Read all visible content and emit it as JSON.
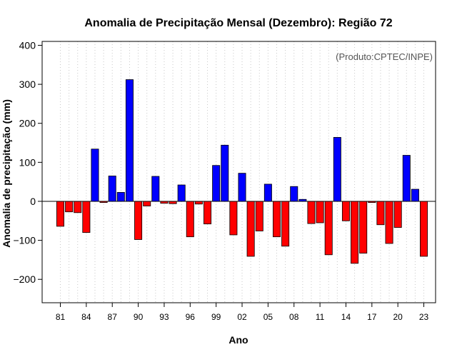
{
  "chart_data": {
    "type": "bar",
    "title": "Anomalia de Precipitação Mensal (Dezembro): Região 72",
    "xlabel": "Ano",
    "ylabel": "Anomalia de precipitação (mm)",
    "annotation": "(Produto:CPTEC/INPE)",
    "legend_position": "none",
    "grid": "vertical dotted lines per year",
    "ylim": [
      -260,
      410
    ],
    "yticks": [
      -200,
      -100,
      0,
      100,
      200,
      300,
      400
    ],
    "ytick_labels": [
      "−200",
      "−100",
      "0",
      "100",
      "200",
      "300",
      "400"
    ],
    "xtick_labels": [
      "81",
      "84",
      "87",
      "90",
      "93",
      "96",
      "99",
      "02",
      "05",
      "08",
      "11",
      "14",
      "17",
      "20",
      "23"
    ],
    "xtick_years": [
      1981,
      1984,
      1987,
      1990,
      1993,
      1996,
      1999,
      2002,
      2005,
      2008,
      2011,
      2014,
      2017,
      2020,
      2023
    ],
    "colors": {
      "positive": "#0000ff",
      "negative": "#ff0000",
      "edge": "#000000",
      "zero_line": "#000000"
    },
    "categories": [
      1981,
      1982,
      1983,
      1984,
      1985,
      1986,
      1987,
      1988,
      1989,
      1990,
      1991,
      1992,
      1993,
      1994,
      1995,
      1996,
      1997,
      1998,
      1999,
      2000,
      2001,
      2002,
      2003,
      2004,
      2005,
      2006,
      2007,
      2008,
      2009,
      2010,
      2011,
      2012,
      2013,
      2014,
      2015,
      2016,
      2017,
      2018,
      2019,
      2020,
      2021,
      2022,
      2023
    ],
    "values": [
      -64,
      -27,
      -29,
      -80,
      134,
      -3,
      65,
      23,
      312,
      -98,
      -12,
      64,
      -5,
      -6,
      42,
      -91,
      -7,
      -58,
      92,
      144,
      -86,
      72,
      -141,
      -76,
      44,
      -91,
      -115,
      38,
      5,
      -57,
      -55,
      -137,
      164,
      -50,
      -159,
      -133,
      -3,
      -60,
      -108,
      -67,
      118,
      31,
      -141
    ]
  }
}
